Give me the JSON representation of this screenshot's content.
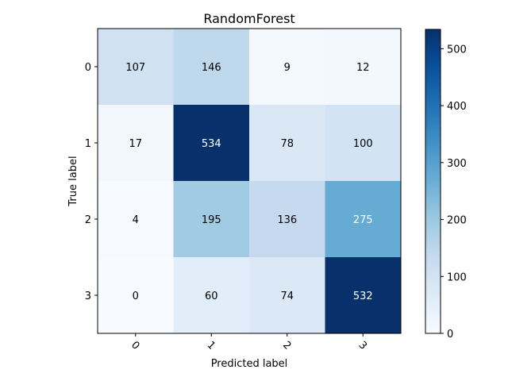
{
  "chart_data": {
    "type": "heatmap",
    "title": "RandomForest",
    "xlabel": "Predicted label",
    "ylabel": "True label",
    "x_categories": [
      "0",
      "1",
      "2",
      "3"
    ],
    "y_categories": [
      "0",
      "1",
      "2",
      "3"
    ],
    "values": [
      [
        107,
        146,
        9,
        12
      ],
      [
        17,
        534,
        78,
        100
      ],
      [
        4,
        195,
        136,
        275
      ],
      [
        0,
        60,
        74,
        532
      ]
    ],
    "colormap": "Blues",
    "color_range": [
      0,
      534
    ],
    "colorbar_ticks": [
      0,
      100,
      200,
      300,
      400,
      500
    ],
    "x_tick_rotation": "45 degrees",
    "grid": false
  }
}
